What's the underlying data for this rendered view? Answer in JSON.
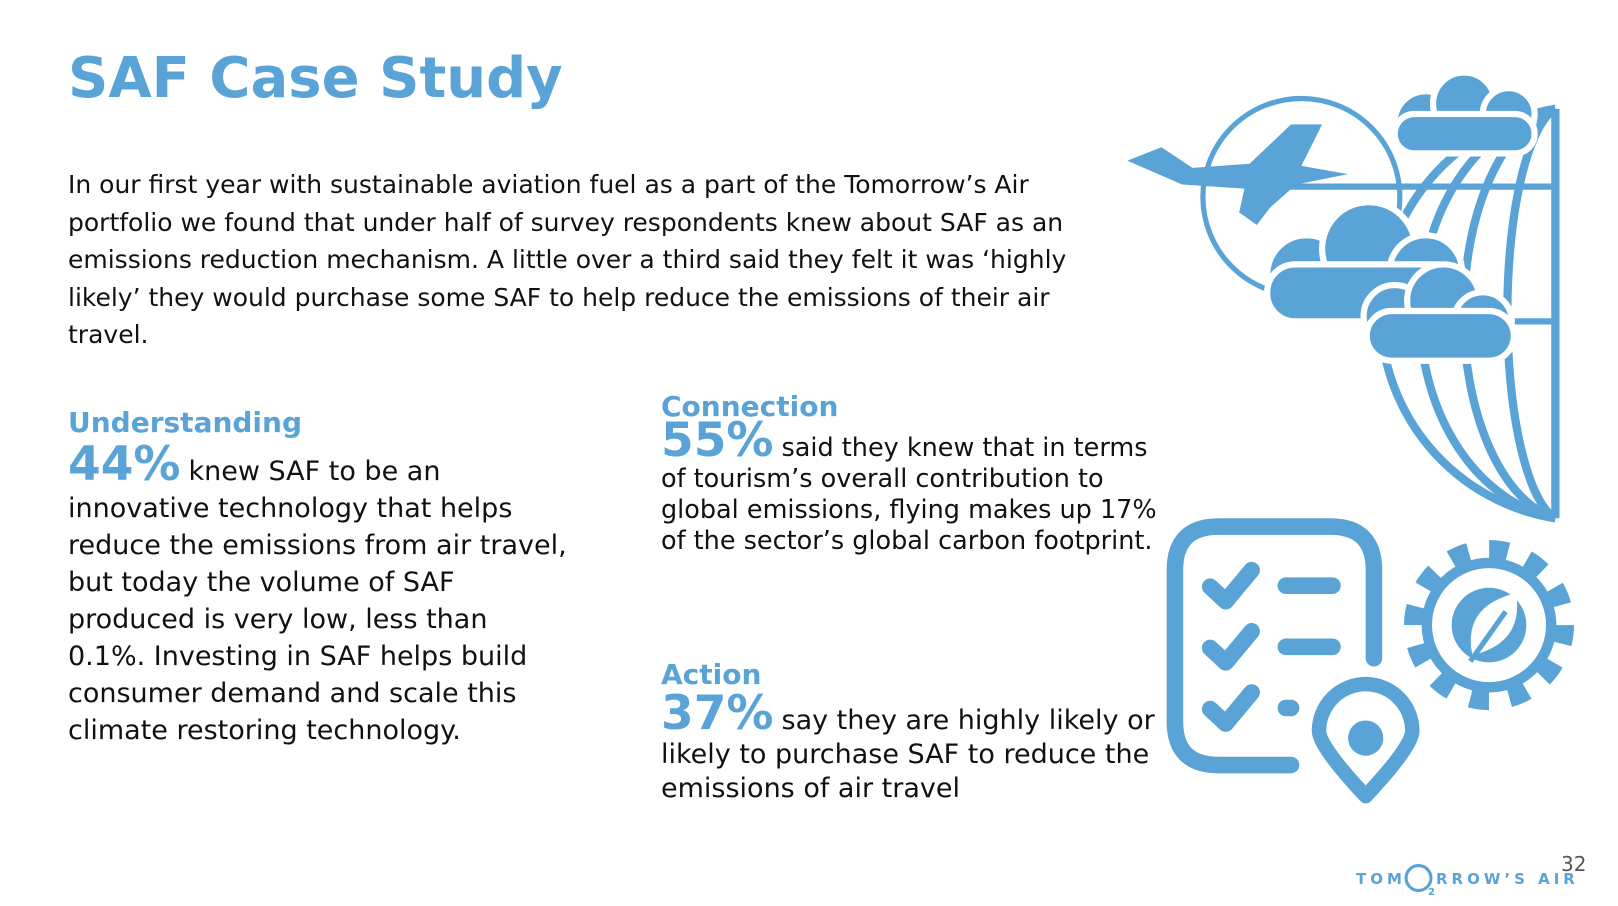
{
  "title": "SAF Case Study",
  "intro": "In our first year with sustainable aviation fuel as a part of the Tomorrow’s Air portfolio we found that under half of survey respondents knew about SAF as an emissions reduction mechanism. A little over a third said they felt it was ‘highly likely’ they would purchase some SAF to help reduce the emissions of their air travel.",
  "sections": [
    {
      "heading": "Understanding",
      "stat": "44%",
      "text": "knew SAF to be an innovative technology that helps reduce the emissions from air travel, but today the volume of SAF produced is very low, less than 0.1%. Investing in SAF helps build consumer demand and scale this climate restoring technology."
    },
    {
      "heading": "Connection",
      "stat": "55%",
      "text": "said they knew that in terms of tourism’s overall contribution to global emissions, flying makes up 17% of the sector’s global carbon footprint."
    },
    {
      "heading": "Action",
      "stat": "37%",
      "text": "say they are highly likely or likely to purchase SAF to reduce the emissions of air travel"
    }
  ],
  "logo": {
    "left": "TOM",
    "subscript": "2",
    "right": "RROW’S AIR"
  },
  "page_number": "32"
}
